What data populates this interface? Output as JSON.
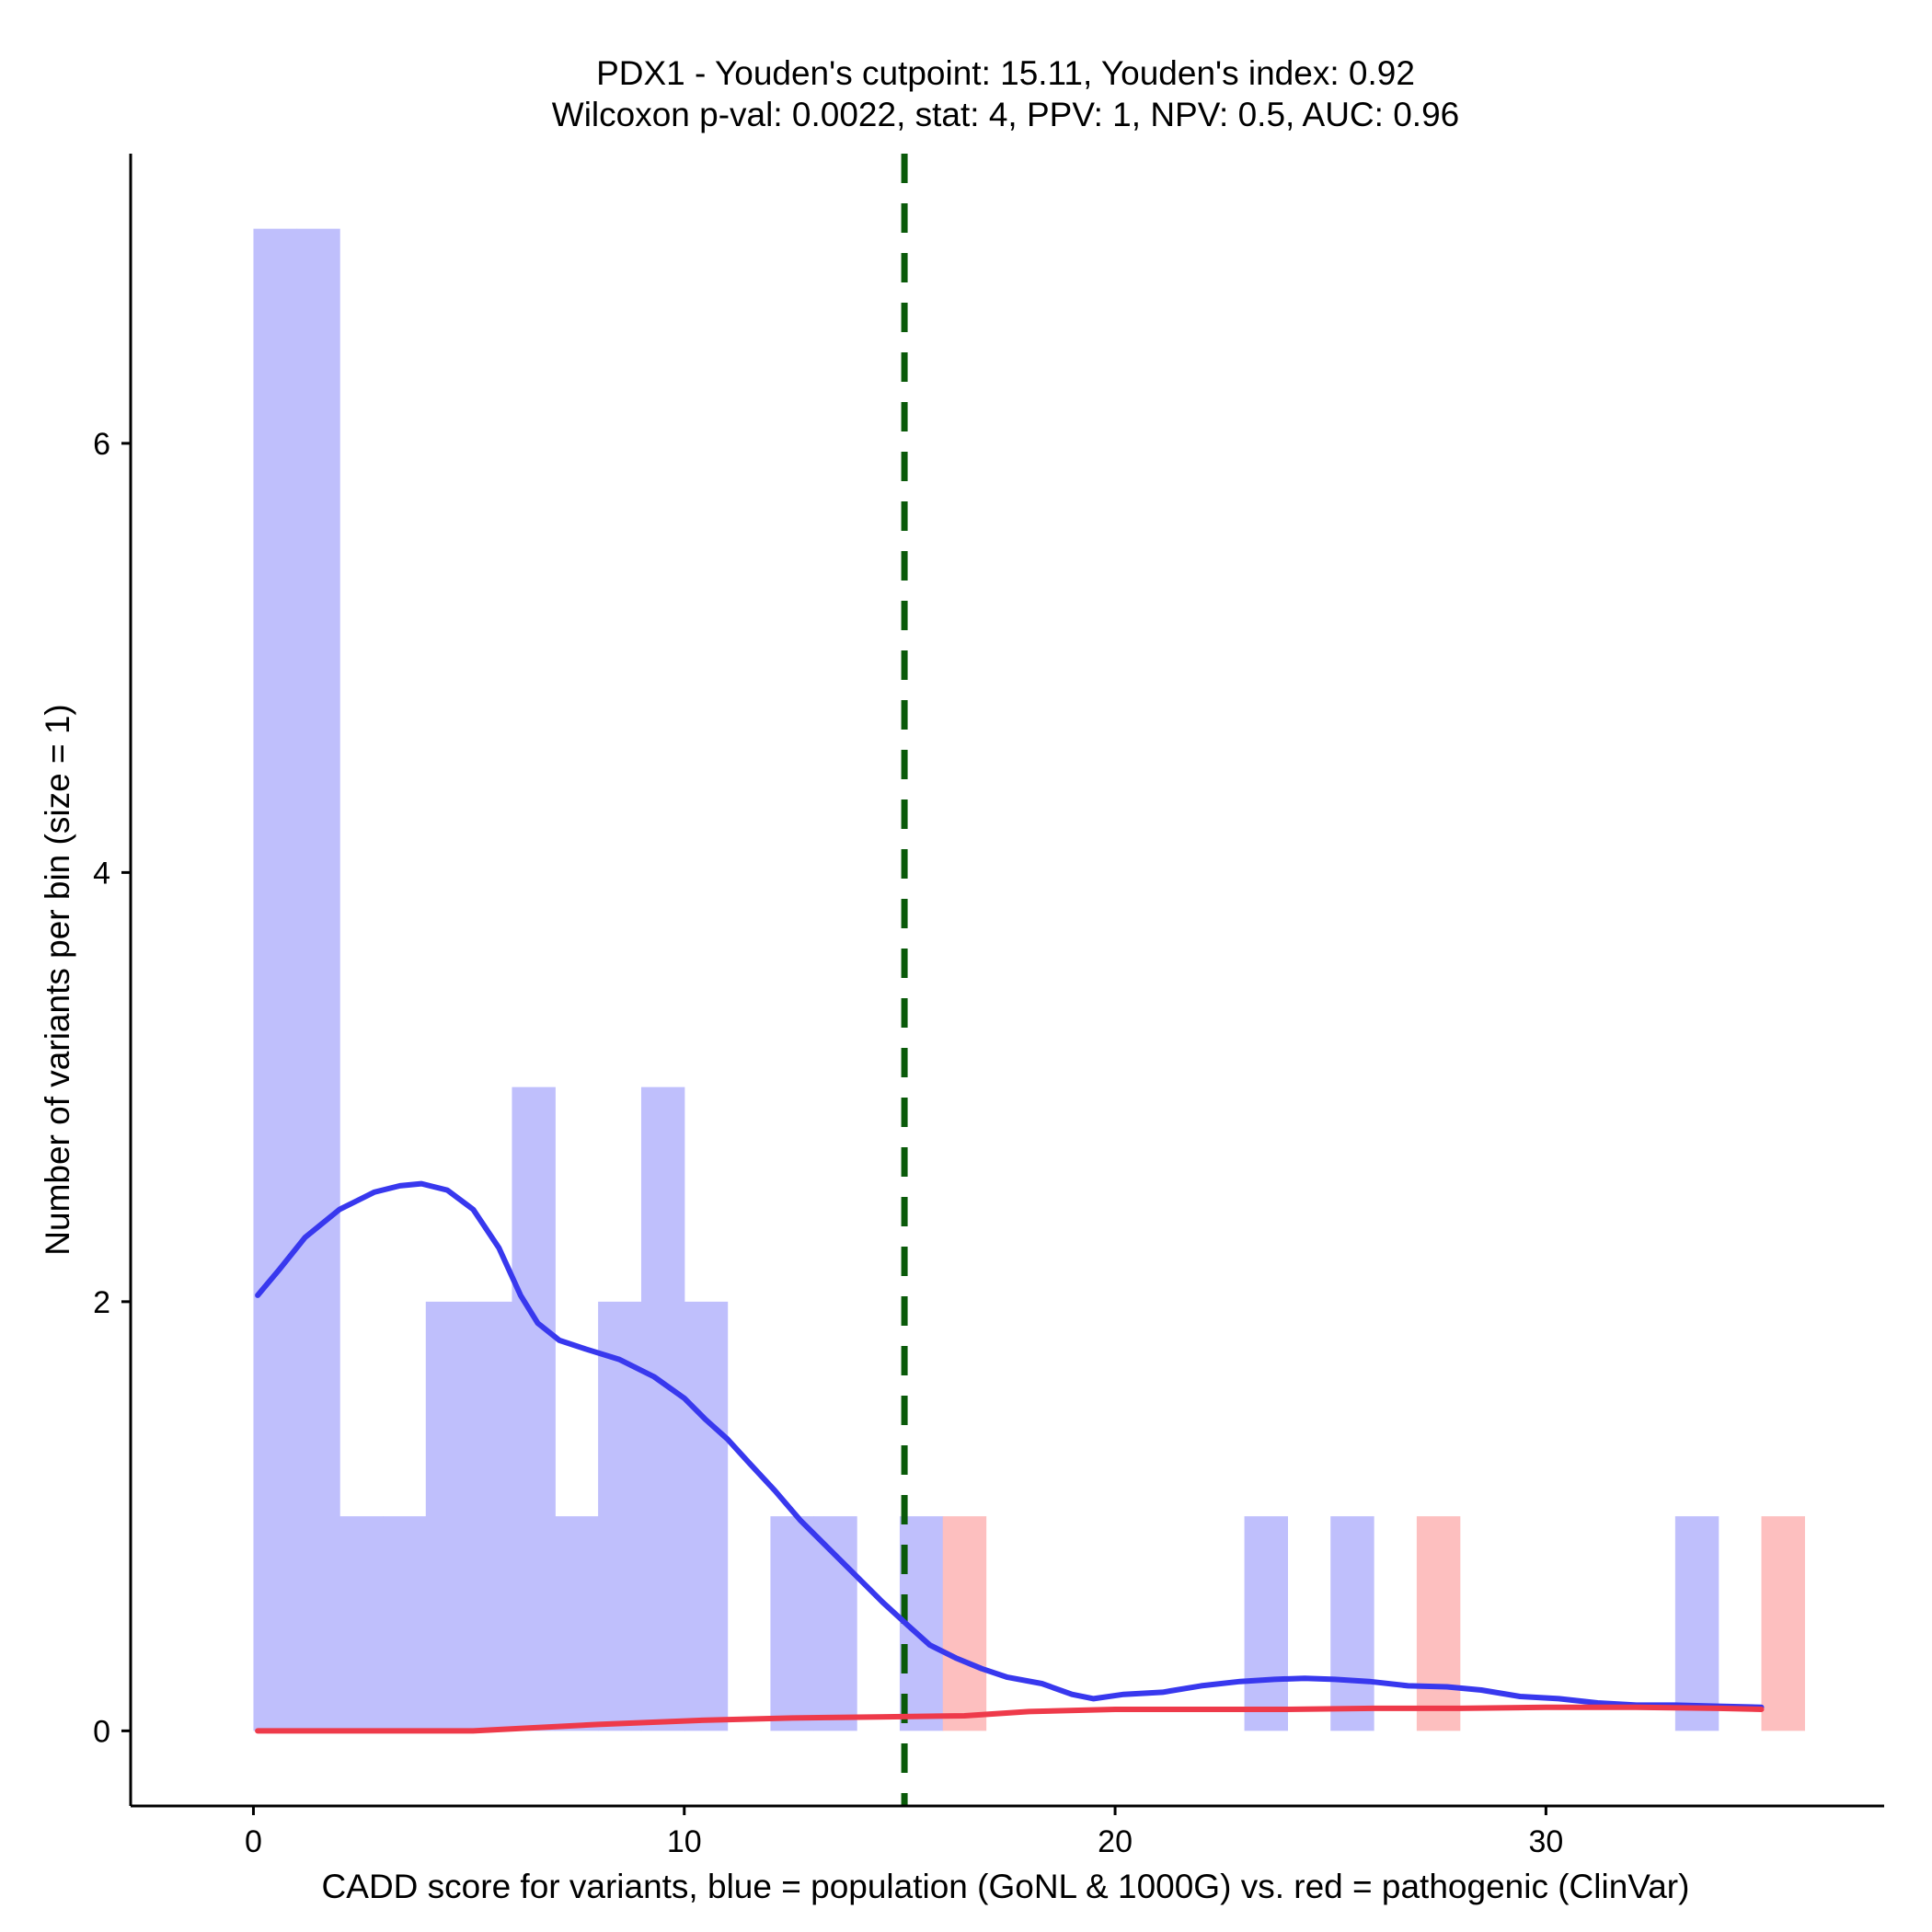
{
  "chart_data": {
    "type": "bar",
    "title_line1": "PDX1 - Youden's cutpoint: 15.11, Youden's index: 0.92",
    "title_line2": "Wilcoxon p-val: 0.0022, stat: 4, PPV: 1, NPV: 0.5, AUC: 0.96",
    "xlabel": "CADD score for variants, blue = population (GoNL & 1000G) vs. red = pathogenic (ClinVar)",
    "ylabel": "Number of variants per bin (size = 1)",
    "xlim": [
      -2.85,
      37.85
    ],
    "ylim": [
      -0.35,
      7.35
    ],
    "x_ticks": [
      0,
      10,
      20,
      30
    ],
    "y_ticks": [
      0,
      2,
      4,
      6
    ],
    "cutpoint": 15.11,
    "colors": {
      "population_bar": "#bfbffc",
      "pathogenic_bar": "#fdbfbf",
      "population_line": "#3838ee",
      "pathogenic_line": "#ee3a4a",
      "cutpoint_line": "#0a5a0a"
    },
    "series": [
      {
        "color_key": "population",
        "bars": [
          {
            "x0": 0,
            "x1": 1,
            "count": 7
          },
          {
            "x0": 1,
            "x1": 2,
            "count": 7
          },
          {
            "x0": 2,
            "x1": 3,
            "count": 1
          },
          {
            "x0": 3,
            "x1": 4,
            "count": 1
          },
          {
            "x0": 4,
            "x1": 5,
            "count": 2
          },
          {
            "x0": 5,
            "x1": 6,
            "count": 2
          },
          {
            "x0": 6,
            "x1": 7,
            "count": 3
          },
          {
            "x0": 7,
            "x1": 8,
            "count": 1
          },
          {
            "x0": 8,
            "x1": 9,
            "count": 2
          },
          {
            "x0": 9,
            "x1": 10,
            "count": 3
          },
          {
            "x0": 10,
            "x1": 11,
            "count": 2
          },
          {
            "x0": 12,
            "x1": 13,
            "count": 1
          },
          {
            "x0": 13,
            "x1": 14,
            "count": 1
          },
          {
            "x0": 15,
            "x1": 16,
            "count": 1
          },
          {
            "x0": 23,
            "x1": 24,
            "count": 1
          },
          {
            "x0": 25,
            "x1": 26,
            "count": 1
          },
          {
            "x0": 33,
            "x1": 34,
            "count": 1
          }
        ],
        "density": [
          [
            0.1,
            2.03
          ],
          [
            0.6,
            2.15
          ],
          [
            1.2,
            2.3
          ],
          [
            2,
            2.43
          ],
          [
            2.8,
            2.51
          ],
          [
            3.4,
            2.54
          ],
          [
            3.9,
            2.55
          ],
          [
            4.5,
            2.52
          ],
          [
            5.1,
            2.43
          ],
          [
            5.7,
            2.25
          ],
          [
            6.2,
            2.03
          ],
          [
            6.6,
            1.9
          ],
          [
            7.1,
            1.82
          ],
          [
            7.7,
            1.78
          ],
          [
            8.5,
            1.73
          ],
          [
            9.3,
            1.65
          ],
          [
            10,
            1.55
          ],
          [
            10.5,
            1.45
          ],
          [
            11,
            1.36
          ],
          [
            11.5,
            1.25
          ],
          [
            12.1,
            1.12
          ],
          [
            12.7,
            0.98
          ],
          [
            13.3,
            0.86
          ],
          [
            14,
            0.72
          ],
          [
            14.6,
            0.6
          ],
          [
            15.2,
            0.49
          ],
          [
            15.7,
            0.4
          ],
          [
            16.3,
            0.34
          ],
          [
            16.9,
            0.29
          ],
          [
            17.5,
            0.25
          ],
          [
            18.3,
            0.22
          ],
          [
            19,
            0.17
          ],
          [
            19.5,
            0.15
          ],
          [
            20.2,
            0.17
          ],
          [
            21.1,
            0.18
          ],
          [
            22,
            0.21
          ],
          [
            22.9,
            0.23
          ],
          [
            23.7,
            0.24
          ],
          [
            24.4,
            0.245
          ],
          [
            25.1,
            0.24
          ],
          [
            25.9,
            0.23
          ],
          [
            26.8,
            0.21
          ],
          [
            27.7,
            0.205
          ],
          [
            28.5,
            0.19
          ],
          [
            29.4,
            0.16
          ],
          [
            30.3,
            0.15
          ],
          [
            31.2,
            0.13
          ],
          [
            32.1,
            0.12
          ],
          [
            33,
            0.12
          ],
          [
            33.9,
            0.115
          ],
          [
            35,
            0.11
          ]
        ]
      },
      {
        "color_key": "pathogenic",
        "bars": [
          {
            "x0": 16,
            "x1": 17,
            "count": 1
          },
          {
            "x0": 27,
            "x1": 28,
            "count": 1
          },
          {
            "x0": 35,
            "x1": 36,
            "count": 1
          }
        ],
        "density": [
          [
            0.1,
            0
          ],
          [
            2,
            0
          ],
          [
            5.1,
            0
          ],
          [
            8,
            0.03
          ],
          [
            10.5,
            0.05
          ],
          [
            12.5,
            0.06
          ],
          [
            14.5,
            0.065
          ],
          [
            16.5,
            0.07
          ],
          [
            18,
            0.09
          ],
          [
            20,
            0.1
          ],
          [
            22,
            0.1
          ],
          [
            24,
            0.1
          ],
          [
            26,
            0.105
          ],
          [
            28,
            0.105
          ],
          [
            30,
            0.11
          ],
          [
            32,
            0.11
          ],
          [
            34,
            0.105
          ],
          [
            35,
            0.1
          ]
        ]
      }
    ]
  }
}
